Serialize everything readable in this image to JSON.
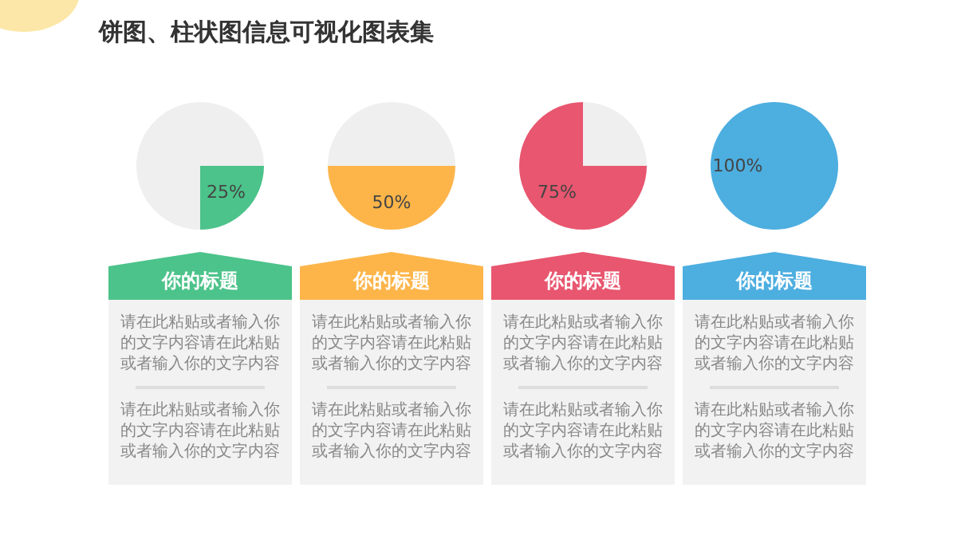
{
  "chart_data": [
    {
      "type": "other",
      "title": "饼图、柱状图信息可视化图表集"
    },
    {
      "type": "pie",
      "title": "你的标题",
      "categories": [
        null,
        null
      ],
      "values": [
        25,
        75
      ],
      "colors": [
        "#4cc38a",
        "#efefef"
      ],
      "value_labels": [
        "25%",
        null
      ],
      "annotations": [
        "请在此粘贴或者输入你的文字内容请在此粘贴或者输入你的文字内容",
        "请在此粘贴或者输入你的文字内容请在此粘贴或者输入你的文字内容"
      ]
    },
    {
      "type": "pie",
      "title": "你的标题",
      "categories": [
        null,
        null
      ],
      "values": [
        50,
        50
      ],
      "colors": [
        "#fdb54a",
        "#efefef"
      ],
      "value_labels": [
        "50%",
        null
      ],
      "annotations": [
        "请在此粘贴或者输入你的文字内容请在此粘贴或者输入你的文字内容",
        "请在此粘贴或者输入你的文字内容请在此粘贴或者输入你的文字内容"
      ]
    },
    {
      "type": "pie",
      "title": "你的标题",
      "categories": [
        null,
        null
      ],
      "values": [
        75,
        25
      ],
      "colors": [
        "#e8566f",
        "#efefef"
      ],
      "value_labels": [
        "75%",
        null
      ],
      "annotations": [
        "请在此粘贴或者输入你的文字内容请在此粘贴或者输入你的文字内容",
        "请在此粘贴或者输入你的文字内容请在此粘贴或者输入你的文字内容"
      ]
    },
    {
      "type": "pie",
      "title": "你的标题",
      "categories": [
        null
      ],
      "values": [
        100
      ],
      "colors": [
        "#4daee0"
      ],
      "value_labels": [
        "100%"
      ],
      "annotations": [
        "请在此粘贴或者输入你的文字内容请在此粘贴或者输入你的文字内容",
        "请在此粘贴或者输入你的文字内容请在此粘贴或者输入你的文字内容"
      ]
    }
  ]
}
